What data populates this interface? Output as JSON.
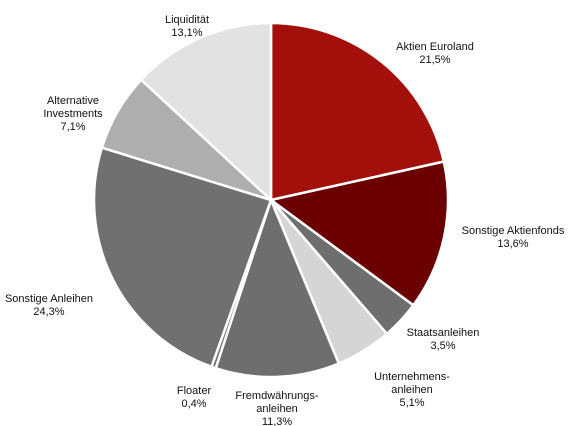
{
  "chart_data": {
    "type": "pie",
    "title": "",
    "start_angle_deg": 0,
    "direction": "clockwise",
    "slices": [
      {
        "label": [
          "Aktien Euroland"
        ],
        "value_text": "21,5%",
        "value": 21.5,
        "color": "#a30f0a"
      },
      {
        "label": [
          "Sonstige Aktienfonds"
        ],
        "value_text": "13,6%",
        "value": 13.6,
        "color": "#6b0000"
      },
      {
        "label": [
          "Staatsanleihen"
        ],
        "value_text": "3,5%",
        "value": 3.5,
        "color": "#6e6e6e"
      },
      {
        "label": [
          "Unternehmens-",
          "anleihen"
        ],
        "value_text": "5,1%",
        "value": 5.1,
        "color": "#d5d5d5"
      },
      {
        "label": [
          "Fremdwährungs-",
          "anleihen"
        ],
        "value_text": "11,3%",
        "value": 11.3,
        "color": "#6e6e6e"
      },
      {
        "label": [
          "Floater"
        ],
        "value_text": "0,4%",
        "value": 0.4,
        "color": "#6e6e6e"
      },
      {
        "label": [
          "Sonstige Anleihen"
        ],
        "value_text": "24,3%",
        "value": 24.3,
        "color": "#707070"
      },
      {
        "label": [
          "Alternative",
          "Investments"
        ],
        "value_text": "7,1%",
        "value": 7.1,
        "color": "#aeaeae"
      },
      {
        "label": [
          "Liquidität"
        ],
        "value_text": "13,1%",
        "value": 13.1,
        "color": "#e2e2e2"
      }
    ]
  }
}
